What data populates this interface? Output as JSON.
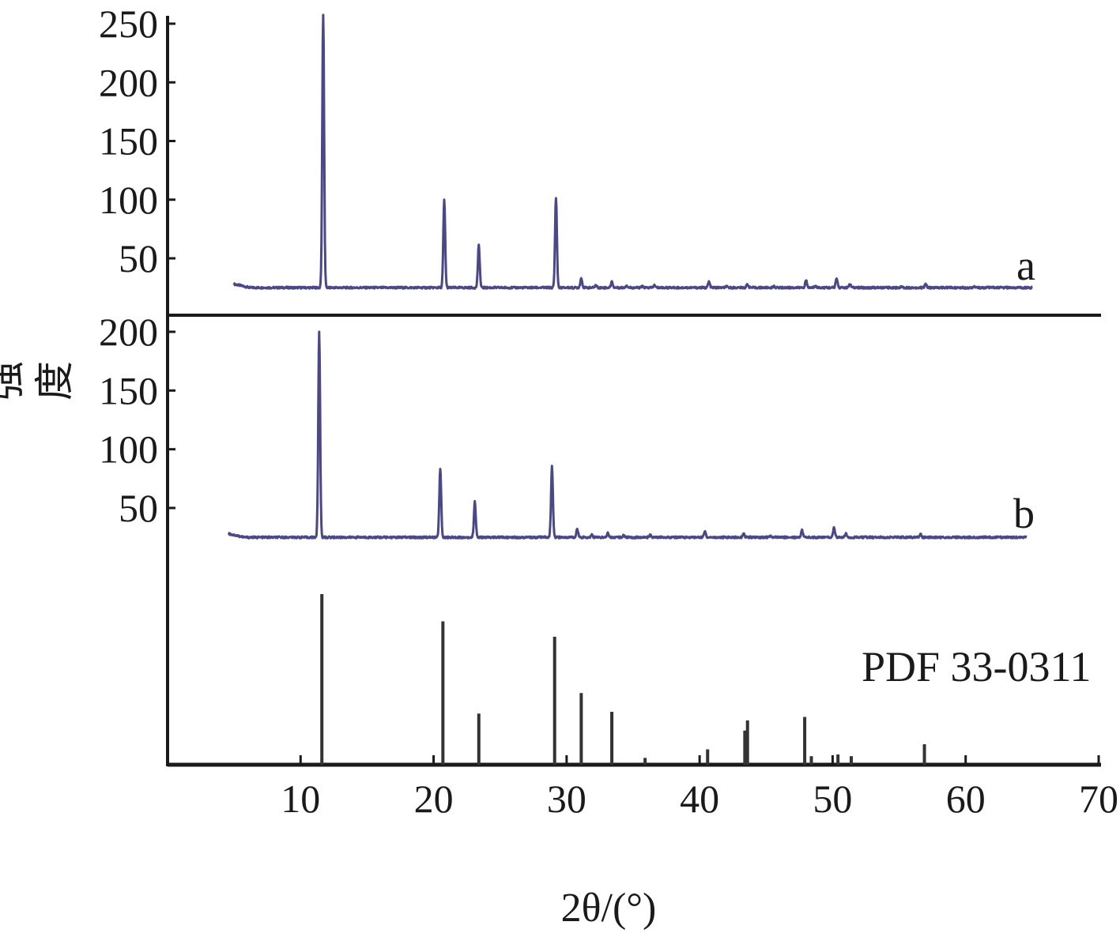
{
  "chart_data": {
    "type": "line",
    "xlabel": "2θ/(°)",
    "ylabel": "强度",
    "xlim": [
      0,
      70
    ],
    "x_ticks": [
      10,
      20,
      30,
      40,
      50,
      60,
      70
    ],
    "grid": false,
    "colors": {
      "series": "#4a4886",
      "reference": "#333333",
      "axis": "#1a1a1a"
    },
    "panels": [
      {
        "name": "a",
        "ylim": [
          0,
          260
        ],
        "y_ticks": [
          50,
          100,
          150,
          200,
          250
        ],
        "baseline": 25,
        "x_range": [
          5,
          65
        ],
        "peaks": [
          {
            "x": 11.7,
            "y": 258
          },
          {
            "x": 20.8,
            "y": 100
          },
          {
            "x": 23.4,
            "y": 61
          },
          {
            "x": 29.2,
            "y": 102
          },
          {
            "x": 31.1,
            "y": 33
          },
          {
            "x": 32.2,
            "y": 27
          },
          {
            "x": 33.4,
            "y": 30
          },
          {
            "x": 34.5,
            "y": 27
          },
          {
            "x": 35.7,
            "y": 26
          },
          {
            "x": 36.6,
            "y": 27
          },
          {
            "x": 40.7,
            "y": 30
          },
          {
            "x": 42.0,
            "y": 26
          },
          {
            "x": 43.6,
            "y": 28
          },
          {
            "x": 45.6,
            "y": 26
          },
          {
            "x": 48.0,
            "y": 31
          },
          {
            "x": 48.7,
            "y": 27
          },
          {
            "x": 50.3,
            "y": 33
          },
          {
            "x": 51.3,
            "y": 28
          },
          {
            "x": 55.2,
            "y": 26
          },
          {
            "x": 57.0,
            "y": 28
          },
          {
            "x": 60.6,
            "y": 26
          }
        ]
      },
      {
        "name": "b",
        "ylim": [
          0,
          205
        ],
        "y_ticks": [
          50,
          100,
          150,
          200
        ],
        "baseline": 25,
        "x_range": [
          4.6,
          64.6
        ],
        "peaks": [
          {
            "x": 11.4,
            "y": 200
          },
          {
            "x": 20.5,
            "y": 84
          },
          {
            "x": 23.1,
            "y": 55
          },
          {
            "x": 28.9,
            "y": 85
          },
          {
            "x": 30.8,
            "y": 32
          },
          {
            "x": 31.9,
            "y": 27
          },
          {
            "x": 33.1,
            "y": 29
          },
          {
            "x": 34.3,
            "y": 27
          },
          {
            "x": 36.3,
            "y": 27
          },
          {
            "x": 40.4,
            "y": 30
          },
          {
            "x": 43.3,
            "y": 28
          },
          {
            "x": 45.3,
            "y": 26
          },
          {
            "x": 47.7,
            "y": 31
          },
          {
            "x": 50.1,
            "y": 33
          },
          {
            "x": 51.0,
            "y": 28
          },
          {
            "x": 56.6,
            "y": 28
          }
        ]
      }
    ],
    "reference": {
      "name": "PDF 33-0311",
      "sticks": [
        {
          "x": 11.6,
          "i": 100
        },
        {
          "x": 20.7,
          "i": 84
        },
        {
          "x": 23.4,
          "i": 30
        },
        {
          "x": 29.1,
          "i": 75
        },
        {
          "x": 31.1,
          "i": 42
        },
        {
          "x": 33.4,
          "i": 31
        },
        {
          "x": 35.9,
          "i": 4
        },
        {
          "x": 40.6,
          "i": 9
        },
        {
          "x": 43.4,
          "i": 20
        },
        {
          "x": 43.6,
          "i": 26
        },
        {
          "x": 47.9,
          "i": 28
        },
        {
          "x": 48.4,
          "i": 5
        },
        {
          "x": 50.4,
          "i": 6
        },
        {
          "x": 51.4,
          "i": 5
        },
        {
          "x": 56.9,
          "i": 12
        }
      ]
    }
  }
}
